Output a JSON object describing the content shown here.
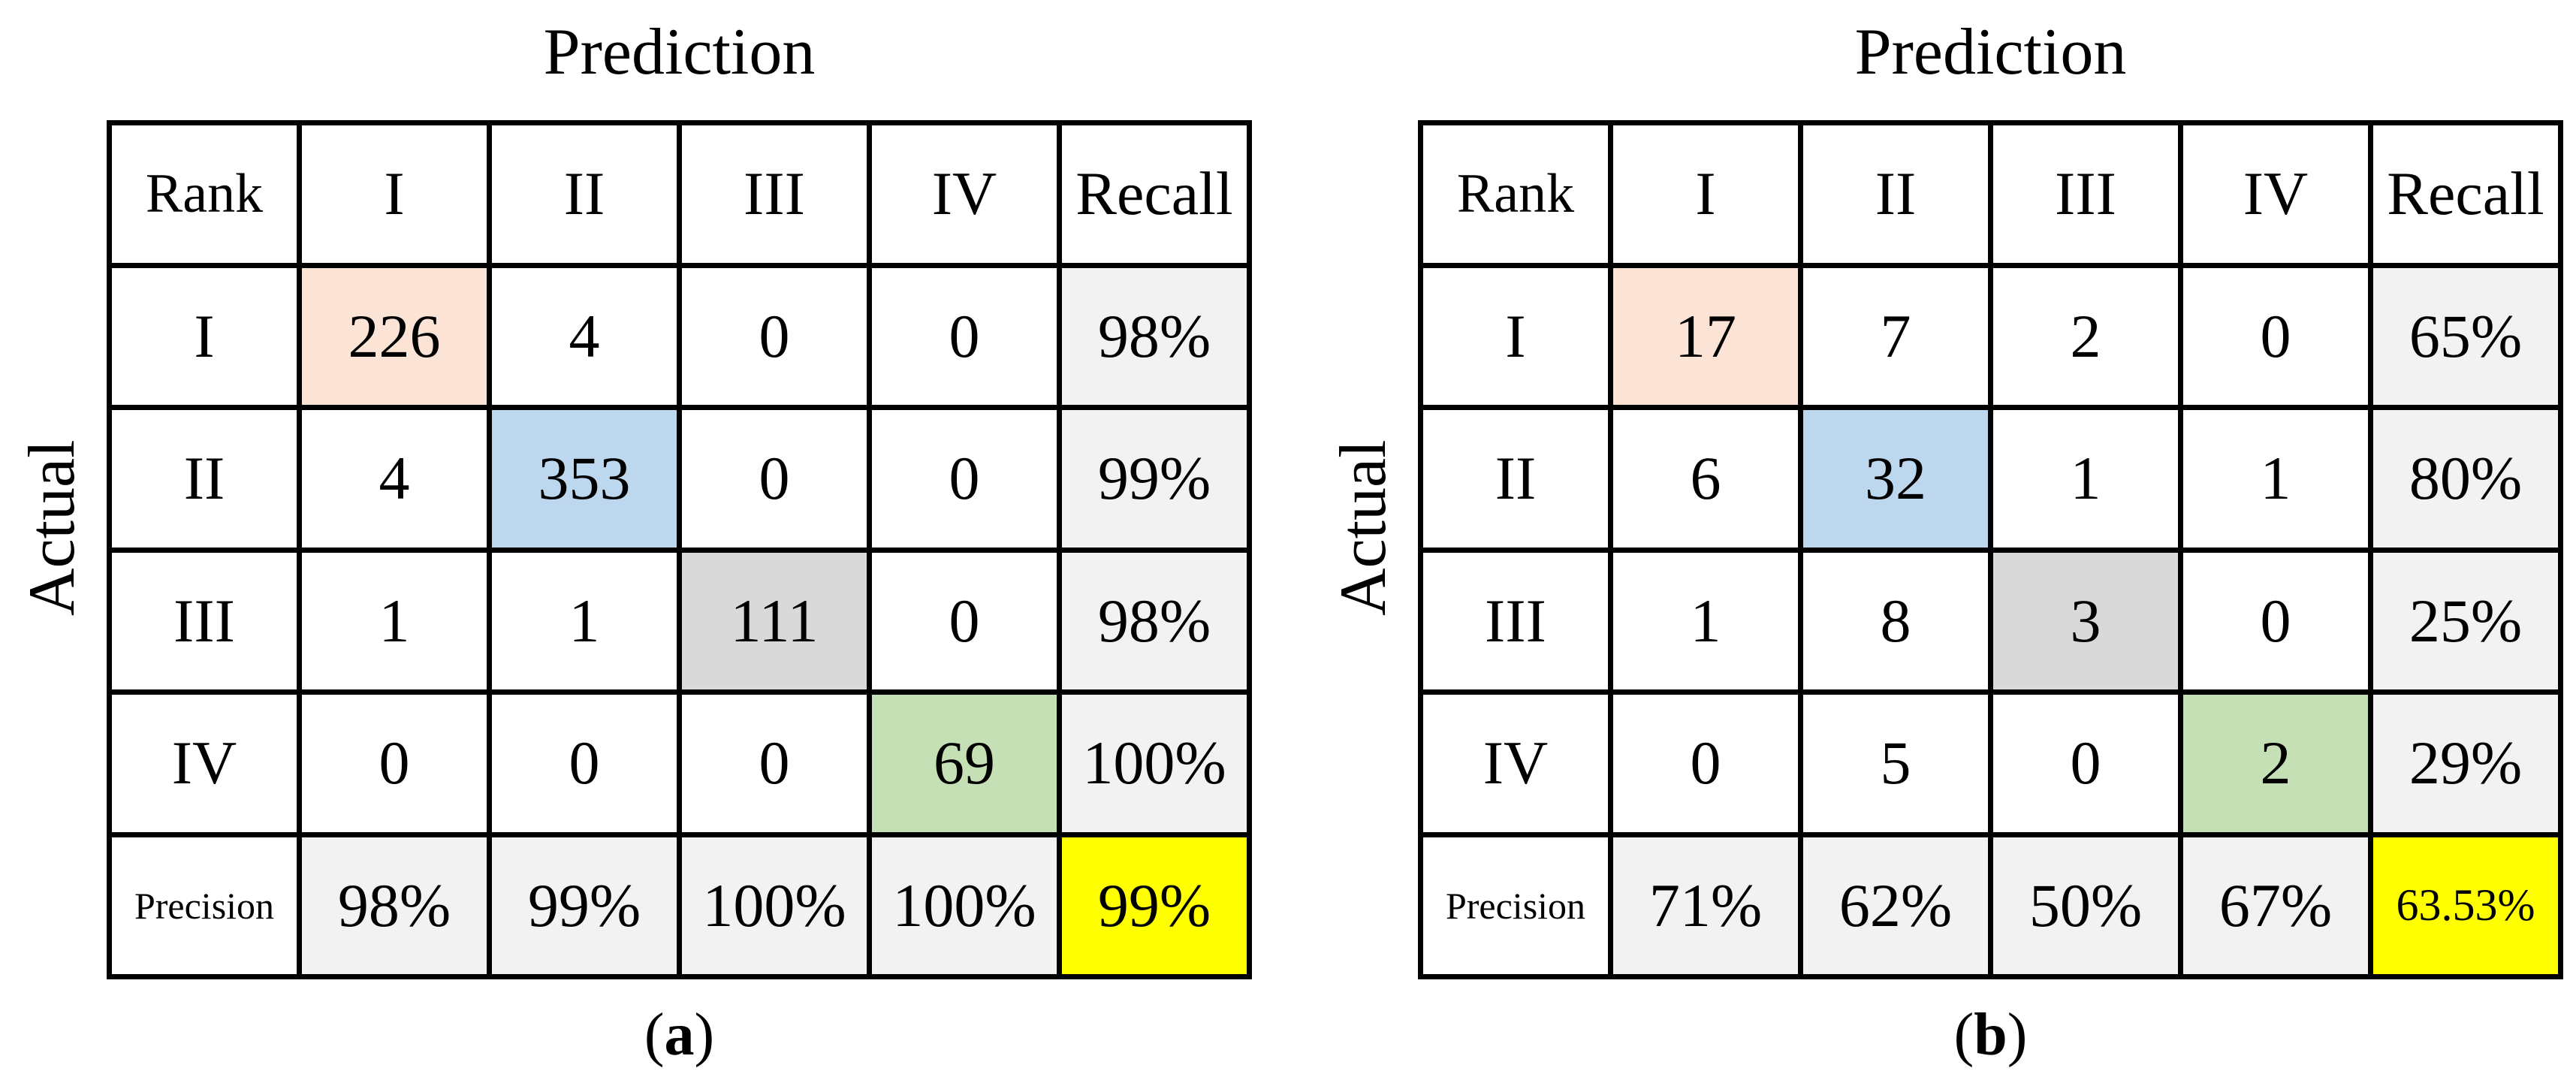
{
  "panels": [
    {
      "title": "Prediction",
      "side_label": "Actual",
      "caption": [
        "(",
        "a",
        ")"
      ],
      "header": [
        "Rank",
        "I",
        "II",
        "III",
        "IV",
        "Recall"
      ],
      "rows": [
        [
          "I",
          "226",
          "4",
          "0",
          "0",
          "98%"
        ],
        [
          "II",
          "4",
          "353",
          "0",
          "0",
          "99%"
        ],
        [
          "III",
          "1",
          "1",
          "111",
          "0",
          "98%"
        ],
        [
          "IV",
          "0",
          "0",
          "0",
          "69",
          "100%"
        ]
      ],
      "footer": [
        "Precision",
        "98%",
        "99%",
        "100%",
        "100%",
        "99%"
      ]
    },
    {
      "title": "Prediction",
      "side_label": "Actual",
      "caption": [
        "(",
        "b",
        ")"
      ],
      "header": [
        "Rank",
        "I",
        "II",
        "III",
        "IV",
        "Recall"
      ],
      "rows": [
        [
          "I",
          "17",
          "7",
          "2",
          "0",
          "65%"
        ],
        [
          "II",
          "6",
          "32",
          "1",
          "1",
          "80%"
        ],
        [
          "III",
          "1",
          "8",
          "3",
          "0",
          "25%"
        ],
        [
          "IV",
          "0",
          "5",
          "0",
          "2",
          "29%"
        ]
      ],
      "footer": [
        "Precision",
        "71%",
        "62%",
        "50%",
        "67%",
        "63.53%"
      ]
    }
  ]
}
